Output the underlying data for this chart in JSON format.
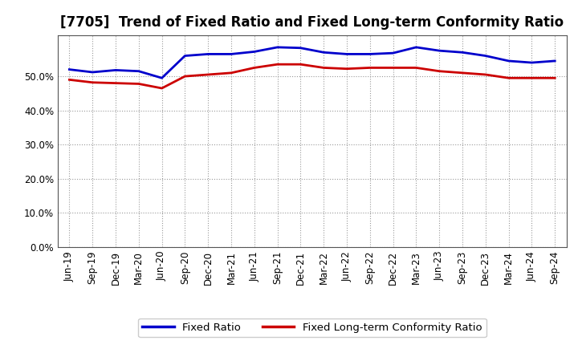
{
  "title": "[7705]  Trend of Fixed Ratio and Fixed Long-term Conformity Ratio",
  "labels": [
    "Jun-19",
    "Sep-19",
    "Dec-19",
    "Mar-20",
    "Jun-20",
    "Sep-20",
    "Dec-20",
    "Mar-21",
    "Jun-21",
    "Sep-21",
    "Dec-21",
    "Mar-22",
    "Jun-22",
    "Sep-22",
    "Dec-22",
    "Mar-23",
    "Jun-23",
    "Sep-23",
    "Dec-23",
    "Mar-24",
    "Jun-24",
    "Sep-24"
  ],
  "fixed_ratio": [
    52.0,
    51.2,
    51.8,
    51.5,
    49.5,
    56.0,
    56.5,
    56.5,
    57.2,
    58.5,
    58.3,
    57.0,
    56.5,
    56.5,
    56.8,
    58.5,
    57.5,
    57.0,
    56.0,
    54.5,
    54.0,
    54.5
  ],
  "fixed_lt_ratio": [
    49.0,
    48.2,
    48.0,
    47.8,
    46.5,
    50.0,
    50.5,
    51.0,
    52.5,
    53.5,
    53.5,
    52.5,
    52.2,
    52.5,
    52.5,
    52.5,
    51.5,
    51.0,
    50.5,
    49.5,
    49.5,
    49.5
  ],
  "fixed_ratio_color": "#0000cc",
  "fixed_lt_ratio_color": "#cc0000",
  "ylim": [
    0,
    62
  ],
  "yticks": [
    0,
    10,
    20,
    30,
    40,
    50
  ],
  "background_color": "#ffffff",
  "plot_bg_color": "#ffffff",
  "grid_color": "#999999",
  "legend_fixed": "Fixed Ratio",
  "legend_lt": "Fixed Long-term Conformity Ratio",
  "title_fontsize": 12,
  "axis_fontsize": 8.5,
  "legend_fontsize": 9.5,
  "line_width": 2.0
}
